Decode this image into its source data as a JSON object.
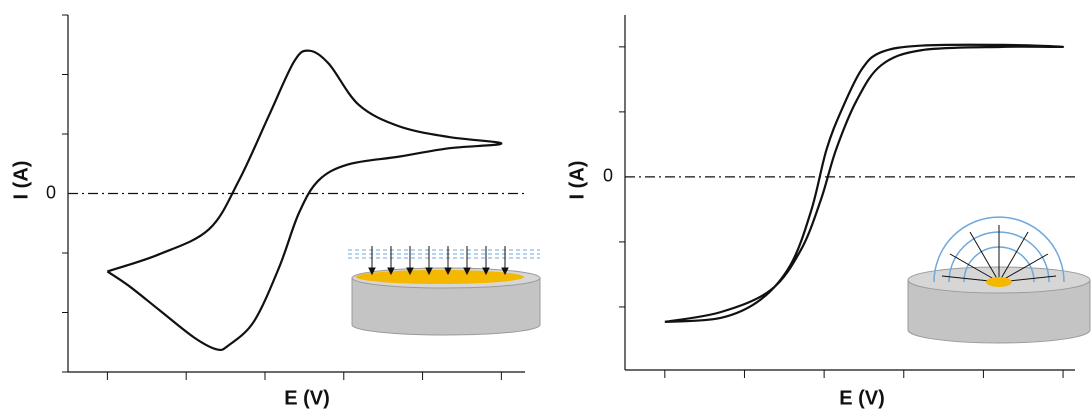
{
  "chart_data": [
    {
      "type": "line",
      "xlabel": "E (V)",
      "ylabel": "I (A)",
      "color": "#111111",
      "x": [
        0,
        0.66,
        1.29,
        1.67,
        2.05,
        2.37,
        2.56,
        2.81,
        3.19,
        3.7,
        4.33,
        5.0,
        4.33,
        3.7,
        3.06,
        2.68,
        2.43,
        2.18,
        1.86,
        1.54,
        1.39,
        1.1,
        0.66,
        0.28,
        0
      ],
      "values": [
        -1.31,
        -1.02,
        -0.6,
        0.22,
        1.31,
        2.22,
        2.4,
        2.18,
        1.49,
        1.13,
        0.95,
        0.84,
        0.76,
        0.62,
        0.49,
        0.22,
        -0.33,
        -1.24,
        -2.15,
        -2.55,
        -2.62,
        -2.42,
        -1.96,
        -1.56,
        -1.31
      ],
      "xlim": [
        -0.5,
        5.3
      ],
      "ylim": [
        -3,
        3
      ],
      "yticks": [
        0
      ],
      "xticks_minor": [
        0,
        1,
        2,
        3,
        4,
        5
      ],
      "yticks_minor": [
        -3,
        -2,
        -1,
        1,
        2,
        3
      ],
      "zero_line": true
    },
    {
      "type": "line",
      "xlabel": "E (V)",
      "ylabel": "I (A)",
      "color": "#111111",
      "x": [
        0,
        0.7,
        1.33,
        1.71,
        1.96,
        2.15,
        2.41,
        2.72,
        3.23,
        4.24,
        5.0,
        4.24,
        3.23,
        2.72,
        2.47,
        2.22,
        2.03,
        1.84,
        1.58,
        1.2,
        0.7,
        0
      ],
      "values": [
        -2.23,
        -2.08,
        -1.74,
        -1.12,
        -0.35,
        0.42,
        1.18,
        1.72,
        1.95,
        2.0,
        2.0,
        2.03,
        2.02,
        1.92,
        1.65,
        1.03,
        0.42,
        -0.51,
        -1.35,
        -1.89,
        -2.17,
        -2.23
      ],
      "xlim": [
        -0.5,
        5.15
      ],
      "ylim": [
        -2.97,
        2.49
      ],
      "yticks": [
        0
      ],
      "xticks_minor": [
        0,
        1,
        2,
        3,
        4,
        5
      ],
      "yticks_minor": [
        -2,
        -1,
        1,
        2
      ],
      "zero_line": true
    }
  ]
}
